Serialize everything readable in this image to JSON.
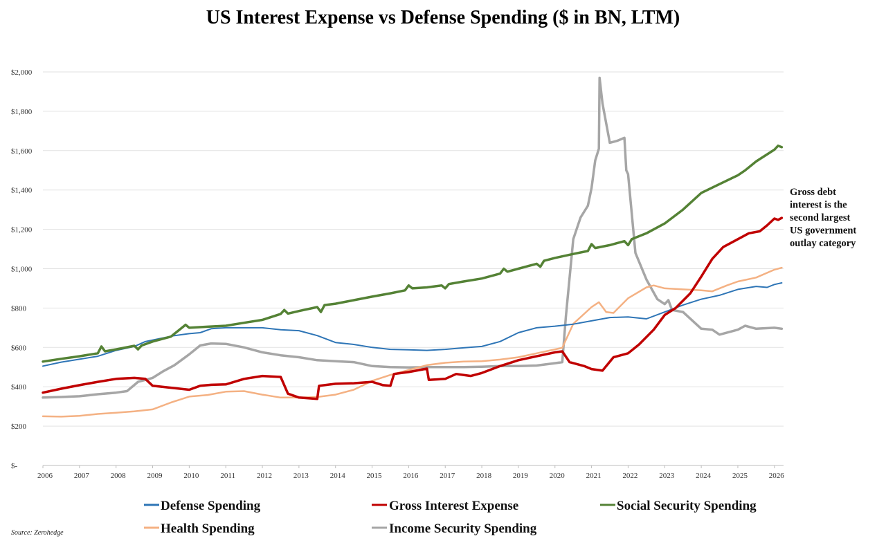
{
  "chart_data": {
    "type": "line",
    "title": "US Interest Expense vs Defense Spending ($ in BN, LTM)",
    "ylim": [
      0,
      2000
    ],
    "xlim": [
      2006.0,
      2026.25
    ],
    "y_ticks": [
      0,
      200,
      400,
      600,
      800,
      1000,
      1200,
      1400,
      1600,
      1800,
      2000
    ],
    "y_tick_labels": [
      "$-",
      "$200",
      "$400",
      "$600",
      "$800",
      "$1,000",
      "$1,200",
      "$1,400",
      "$1,600",
      "$1,800",
      "$2,000"
    ],
    "x_ticks": [
      2006,
      2007,
      2008,
      2009,
      2010,
      2011,
      2012,
      2013,
      2014,
      2015,
      2016,
      2017,
      2018,
      2019,
      2020,
      2021,
      2022,
      2023,
      2024,
      2025,
      2026
    ],
    "x_tick_labels": [
      "2006",
      "2007",
      "2008",
      "2009",
      "2010",
      "2011",
      "2012",
      "2013",
      "2014",
      "2015",
      "2016",
      "2017",
      "2018",
      "2019",
      "2020",
      "2021",
      "2022",
      "2023",
      "2024",
      "2025",
      "2026"
    ],
    "grid": "horizontal",
    "legend_position": "bottom",
    "annotation": [
      "Gross debt",
      "interest is the",
      "second largest",
      "US government",
      "outlay category"
    ],
    "source": "Source: Zerohedge",
    "series": [
      {
        "name": "Defense Spending",
        "color": "#2e75b6",
        "width": 2,
        "points": [
          [
            2006.0,
            505
          ],
          [
            2006.5,
            525
          ],
          [
            2007.0,
            540
          ],
          [
            2007.5,
            555
          ],
          [
            2008.0,
            585
          ],
          [
            2008.5,
            605
          ],
          [
            2008.8,
            630
          ],
          [
            2009.2,
            645
          ],
          [
            2009.6,
            660
          ],
          [
            2010.0,
            670
          ],
          [
            2010.3,
            675
          ],
          [
            2010.6,
            695
          ],
          [
            2011.0,
            700
          ],
          [
            2011.5,
            700
          ],
          [
            2012.0,
            700
          ],
          [
            2012.5,
            690
          ],
          [
            2013.0,
            685
          ],
          [
            2013.5,
            660
          ],
          [
            2014.0,
            625
          ],
          [
            2014.5,
            615
          ],
          [
            2015.0,
            600
          ],
          [
            2015.5,
            590
          ],
          [
            2016.0,
            588
          ],
          [
            2016.5,
            585
          ],
          [
            2017.0,
            590
          ],
          [
            2017.5,
            598
          ],
          [
            2018.0,
            605
          ],
          [
            2018.5,
            630
          ],
          [
            2019.0,
            675
          ],
          [
            2019.5,
            700
          ],
          [
            2020.0,
            708
          ],
          [
            2020.5,
            718
          ],
          [
            2021.0,
            735
          ],
          [
            2021.5,
            752
          ],
          [
            2022.0,
            755
          ],
          [
            2022.5,
            745
          ],
          [
            2023.0,
            780
          ],
          [
            2023.5,
            815
          ],
          [
            2024.0,
            845
          ],
          [
            2024.5,
            865
          ],
          [
            2025.0,
            895
          ],
          [
            2025.5,
            910
          ],
          [
            2025.8,
            905
          ],
          [
            2026.0,
            920
          ],
          [
            2026.2,
            928
          ]
        ]
      },
      {
        "name": "Gross Interest Expense",
        "color": "#c00000",
        "width": 3.5,
        "points": [
          [
            2006.0,
            370
          ],
          [
            2006.5,
            390
          ],
          [
            2007.0,
            408
          ],
          [
            2007.5,
            425
          ],
          [
            2008.0,
            440
          ],
          [
            2008.5,
            445
          ],
          [
            2008.8,
            440
          ],
          [
            2009.0,
            405
          ],
          [
            2009.5,
            395
          ],
          [
            2010.0,
            385
          ],
          [
            2010.3,
            405
          ],
          [
            2010.6,
            410
          ],
          [
            2011.0,
            412
          ],
          [
            2011.5,
            440
          ],
          [
            2012.0,
            455
          ],
          [
            2012.5,
            450
          ],
          [
            2012.7,
            365
          ],
          [
            2013.0,
            345
          ],
          [
            2013.5,
            338
          ],
          [
            2013.55,
            405
          ],
          [
            2014.0,
            415
          ],
          [
            2014.5,
            418
          ],
          [
            2015.0,
            425
          ],
          [
            2015.3,
            408
          ],
          [
            2015.5,
            405
          ],
          [
            2015.6,
            465
          ],
          [
            2016.0,
            475
          ],
          [
            2016.5,
            492
          ],
          [
            2016.55,
            435
          ],
          [
            2017.0,
            440
          ],
          [
            2017.3,
            465
          ],
          [
            2017.7,
            455
          ],
          [
            2018.0,
            470
          ],
          [
            2018.5,
            505
          ],
          [
            2019.0,
            535
          ],
          [
            2019.5,
            555
          ],
          [
            2020.0,
            575
          ],
          [
            2020.2,
            580
          ],
          [
            2020.4,
            525
          ],
          [
            2020.8,
            505
          ],
          [
            2021.0,
            490
          ],
          [
            2021.3,
            482
          ],
          [
            2021.6,
            550
          ],
          [
            2022.0,
            570
          ],
          [
            2022.3,
            615
          ],
          [
            2022.7,
            690
          ],
          [
            2023.0,
            765
          ],
          [
            2023.3,
            800
          ],
          [
            2023.7,
            875
          ],
          [
            2024.0,
            960
          ],
          [
            2024.3,
            1050
          ],
          [
            2024.6,
            1110
          ],
          [
            2025.0,
            1150
          ],
          [
            2025.3,
            1180
          ],
          [
            2025.6,
            1190
          ],
          [
            2025.8,
            1220
          ],
          [
            2026.0,
            1255
          ],
          [
            2026.1,
            1248
          ],
          [
            2026.2,
            1258
          ]
        ]
      },
      {
        "name": "Social Security Spending",
        "color": "#548235",
        "width": 3.5,
        "points": [
          [
            2006.0,
            528
          ],
          [
            2006.5,
            542
          ],
          [
            2007.0,
            555
          ],
          [
            2007.5,
            570
          ],
          [
            2007.6,
            605
          ],
          [
            2007.7,
            580
          ],
          [
            2008.0,
            590
          ],
          [
            2008.5,
            608
          ],
          [
            2008.6,
            590
          ],
          [
            2008.7,
            610
          ],
          [
            2009.0,
            630
          ],
          [
            2009.5,
            655
          ],
          [
            2009.9,
            715
          ],
          [
            2010.0,
            700
          ],
          [
            2010.5,
            705
          ],
          [
            2011.0,
            710
          ],
          [
            2011.5,
            725
          ],
          [
            2012.0,
            740
          ],
          [
            2012.5,
            770
          ],
          [
            2012.6,
            790
          ],
          [
            2012.7,
            772
          ],
          [
            2013.0,
            785
          ],
          [
            2013.5,
            805
          ],
          [
            2013.6,
            780
          ],
          [
            2013.7,
            815
          ],
          [
            2014.0,
            822
          ],
          [
            2014.5,
            840
          ],
          [
            2015.0,
            858
          ],
          [
            2015.5,
            875
          ],
          [
            2015.9,
            890
          ],
          [
            2016.0,
            915
          ],
          [
            2016.1,
            900
          ],
          [
            2016.5,
            905
          ],
          [
            2016.9,
            915
          ],
          [
            2017.0,
            900
          ],
          [
            2017.1,
            922
          ],
          [
            2017.5,
            935
          ],
          [
            2018.0,
            950
          ],
          [
            2018.5,
            975
          ],
          [
            2018.6,
            1000
          ],
          [
            2018.7,
            985
          ],
          [
            2019.0,
            1000
          ],
          [
            2019.5,
            1025
          ],
          [
            2019.6,
            1010
          ],
          [
            2019.7,
            1040
          ],
          [
            2020.0,
            1055
          ],
          [
            2020.5,
            1075
          ],
          [
            2020.9,
            1090
          ],
          [
            2021.0,
            1125
          ],
          [
            2021.1,
            1105
          ],
          [
            2021.5,
            1120
          ],
          [
            2021.9,
            1140
          ],
          [
            2022.0,
            1120
          ],
          [
            2022.1,
            1150
          ],
          [
            2022.5,
            1180
          ],
          [
            2023.0,
            1230
          ],
          [
            2023.5,
            1300
          ],
          [
            2024.0,
            1385
          ],
          [
            2024.5,
            1430
          ],
          [
            2025.0,
            1475
          ],
          [
            2025.2,
            1500
          ],
          [
            2025.5,
            1545
          ],
          [
            2026.0,
            1605
          ],
          [
            2026.1,
            1625
          ],
          [
            2026.2,
            1618
          ]
        ]
      },
      {
        "name": "Health Spending",
        "color": "#f4b183",
        "width": 2.5,
        "points": [
          [
            2006.0,
            250
          ],
          [
            2006.5,
            248
          ],
          [
            2007.0,
            252
          ],
          [
            2007.5,
            262
          ],
          [
            2008.0,
            268
          ],
          [
            2008.5,
            275
          ],
          [
            2009.0,
            285
          ],
          [
            2009.5,
            320
          ],
          [
            2010.0,
            350
          ],
          [
            2010.5,
            358
          ],
          [
            2011.0,
            375
          ],
          [
            2011.5,
            378
          ],
          [
            2012.0,
            360
          ],
          [
            2012.5,
            345
          ],
          [
            2013.0,
            345
          ],
          [
            2013.5,
            348
          ],
          [
            2014.0,
            360
          ],
          [
            2014.5,
            385
          ],
          [
            2015.0,
            430
          ],
          [
            2015.5,
            460
          ],
          [
            2016.0,
            485
          ],
          [
            2016.5,
            510
          ],
          [
            2017.0,
            522
          ],
          [
            2017.5,
            528
          ],
          [
            2018.0,
            530
          ],
          [
            2018.5,
            538
          ],
          [
            2019.0,
            550
          ],
          [
            2019.5,
            570
          ],
          [
            2020.0,
            590
          ],
          [
            2020.2,
            598
          ],
          [
            2020.5,
            720
          ],
          [
            2021.0,
            805
          ],
          [
            2021.2,
            830
          ],
          [
            2021.4,
            780
          ],
          [
            2021.6,
            775
          ],
          [
            2022.0,
            850
          ],
          [
            2022.5,
            905
          ],
          [
            2022.7,
            915
          ],
          [
            2023.0,
            900
          ],
          [
            2023.5,
            895
          ],
          [
            2024.0,
            890
          ],
          [
            2024.3,
            885
          ],
          [
            2024.7,
            915
          ],
          [
            2025.0,
            935
          ],
          [
            2025.5,
            955
          ],
          [
            2026.0,
            995
          ],
          [
            2026.2,
            1005
          ]
        ]
      },
      {
        "name": "Income Security Spending",
        "color": "#a6a6a6",
        "width": 3.5,
        "points": [
          [
            2006.0,
            345
          ],
          [
            2006.5,
            348
          ],
          [
            2007.0,
            352
          ],
          [
            2007.5,
            362
          ],
          [
            2008.0,
            370
          ],
          [
            2008.3,
            378
          ],
          [
            2008.6,
            425
          ],
          [
            2009.0,
            445
          ],
          [
            2009.3,
            480
          ],
          [
            2009.6,
            510
          ],
          [
            2010.0,
            565
          ],
          [
            2010.3,
            610
          ],
          [
            2010.6,
            620
          ],
          [
            2011.0,
            618
          ],
          [
            2011.5,
            600
          ],
          [
            2012.0,
            575
          ],
          [
            2012.5,
            560
          ],
          [
            2013.0,
            550
          ],
          [
            2013.5,
            535
          ],
          [
            2014.0,
            530
          ],
          [
            2014.5,
            525
          ],
          [
            2015.0,
            505
          ],
          [
            2015.5,
            500
          ],
          [
            2016.0,
            498
          ],
          [
            2016.5,
            500
          ],
          [
            2017.0,
            500
          ],
          [
            2017.5,
            500
          ],
          [
            2018.0,
            502
          ],
          [
            2018.5,
            505
          ],
          [
            2019.0,
            505
          ],
          [
            2019.5,
            508
          ],
          [
            2020.0,
            520
          ],
          [
            2020.2,
            525
          ],
          [
            2020.3,
            760
          ],
          [
            2020.5,
            1150
          ],
          [
            2020.7,
            1260
          ],
          [
            2020.9,
            1320
          ],
          [
            2021.0,
            1410
          ],
          [
            2021.1,
            1550
          ],
          [
            2021.2,
            1610
          ],
          [
            2021.22,
            1970
          ],
          [
            2021.3,
            1840
          ],
          [
            2021.5,
            1640
          ],
          [
            2021.7,
            1650
          ],
          [
            2021.9,
            1665
          ],
          [
            2021.95,
            1500
          ],
          [
            2022.0,
            1480
          ],
          [
            2022.2,
            1080
          ],
          [
            2022.5,
            945
          ],
          [
            2022.8,
            845
          ],
          [
            2023.0,
            820
          ],
          [
            2023.1,
            840
          ],
          [
            2023.2,
            790
          ],
          [
            2023.5,
            780
          ],
          [
            2024.0,
            695
          ],
          [
            2024.3,
            690
          ],
          [
            2024.5,
            665
          ],
          [
            2025.0,
            690
          ],
          [
            2025.2,
            710
          ],
          [
            2025.5,
            695
          ],
          [
            2026.0,
            700
          ],
          [
            2026.2,
            695
          ]
        ]
      }
    ]
  }
}
